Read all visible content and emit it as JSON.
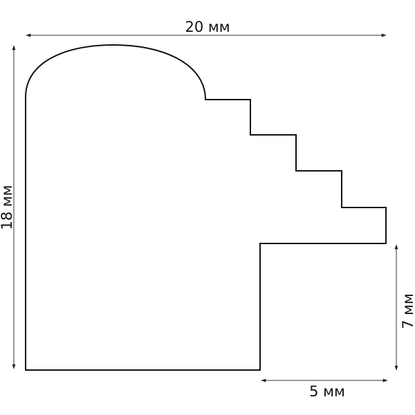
{
  "dimensions": {
    "width_label": "20 мм",
    "height_label": "18 мм",
    "rebate_height_label": "7 мм",
    "rebate_width_label": "5 мм"
  },
  "colors": {
    "outline": "#111111",
    "dimension_line": "#333333"
  }
}
